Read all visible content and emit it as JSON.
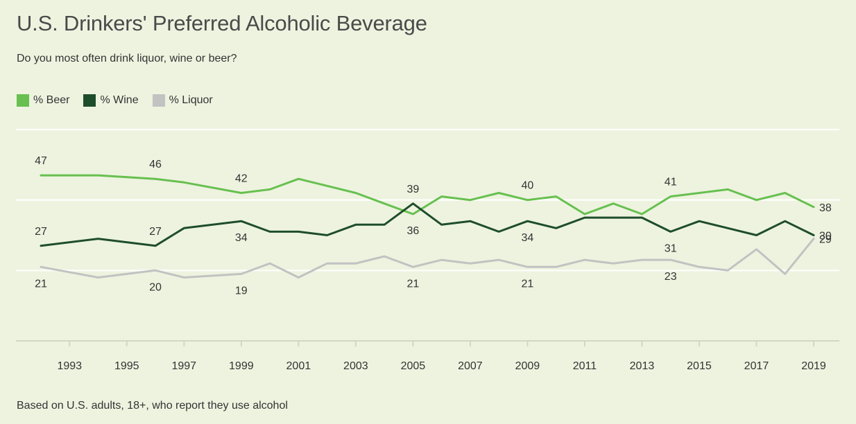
{
  "title": "U.S. Drinkers' Preferred Alcoholic Beverage",
  "subtitle": "Do you most often drink liquor, wine or beer?",
  "footnote": "Based on U.S. adults, 18+, who report they use alcohol",
  "colors": {
    "background": "#edf3df",
    "beer": "#67c04f",
    "wine": "#1e4d2b",
    "liquor": "#c2c2c2",
    "grid": "#ffffff"
  },
  "chart_data": {
    "type": "line",
    "title": "U.S. Drinkers' Preferred Alcoholic Beverage",
    "subtitle": "Do you most often drink liquor, wine or beer?",
    "xlabel": "",
    "ylabel": "",
    "xlim": [
      1992,
      2019
    ],
    "ylim": [
      0,
      60
    ],
    "grid": true,
    "legend_position": "top-left",
    "x_ticks": [
      1993,
      1995,
      1997,
      1999,
      2001,
      2003,
      2005,
      2007,
      2009,
      2011,
      2013,
      2015,
      2017,
      2019
    ],
    "x": [
      1992,
      1994,
      1996,
      1997,
      1999,
      2000,
      2001,
      2002,
      2003,
      2004,
      2005,
      2006,
      2007,
      2008,
      2009,
      2010,
      2011,
      2012,
      2013,
      2014,
      2015,
      2016,
      2017,
      2018,
      2019
    ],
    "series": [
      {
        "key": "beer",
        "name": "% Beer",
        "values": [
          47,
          47,
          46,
          45,
          42,
          43,
          46,
          44,
          42,
          39,
          36,
          41,
          40,
          42,
          40,
          41,
          36,
          39,
          36,
          41,
          42,
          43,
          40,
          42,
          38
        ]
      },
      {
        "key": "wine",
        "name": "% Wine",
        "values": [
          27,
          29,
          27,
          32,
          34,
          31,
          31,
          30,
          33,
          33,
          39,
          33,
          34,
          31,
          34,
          32,
          35,
          35,
          35,
          31,
          34,
          32,
          30,
          34,
          30
        ]
      },
      {
        "key": "liquor",
        "name": "% Liquor",
        "values": [
          21,
          18,
          20,
          18,
          19,
          22,
          18,
          22,
          22,
          24,
          21,
          23,
          22,
          23,
          21,
          21,
          23,
          22,
          23,
          23,
          21,
          20,
          26,
          19,
          29
        ]
      }
    ],
    "annotations": [
      {
        "series": "beer",
        "x": 1992,
        "value": 47,
        "text": "47",
        "pos": "above"
      },
      {
        "series": "wine",
        "x": 1992,
        "value": 27,
        "text": "27",
        "pos": "above"
      },
      {
        "series": "liquor",
        "x": 1992,
        "value": 21,
        "text": "21",
        "pos": "below"
      },
      {
        "series": "beer",
        "x": 1996,
        "value": 46,
        "text": "46",
        "pos": "above"
      },
      {
        "series": "wine",
        "x": 1996,
        "value": 27,
        "text": "27",
        "pos": "above"
      },
      {
        "series": "liquor",
        "x": 1996,
        "value": 20,
        "text": "20",
        "pos": "below"
      },
      {
        "series": "beer",
        "x": 1999,
        "value": 42,
        "text": "42",
        "pos": "above"
      },
      {
        "series": "wine",
        "x": 1999,
        "value": 34,
        "text": "34",
        "pos": "below"
      },
      {
        "series": "liquor",
        "x": 1999,
        "value": 19,
        "text": "19",
        "pos": "below"
      },
      {
        "series": "wine",
        "x": 2005,
        "value": 39,
        "text": "39",
        "pos": "above"
      },
      {
        "series": "beer",
        "x": 2005,
        "value": 36,
        "text": "36",
        "pos": "below"
      },
      {
        "series": "liquor",
        "x": 2005,
        "value": 21,
        "text": "21",
        "pos": "below"
      },
      {
        "series": "beer",
        "x": 2009,
        "value": 40,
        "text": "40",
        "pos": "above"
      },
      {
        "series": "wine",
        "x": 2009,
        "value": 34,
        "text": "34",
        "pos": "below"
      },
      {
        "series": "liquor",
        "x": 2009,
        "value": 21,
        "text": "21",
        "pos": "below"
      },
      {
        "series": "beer",
        "x": 2014,
        "value": 41,
        "text": "41",
        "pos": "above"
      },
      {
        "series": "wine",
        "x": 2014,
        "value": 31,
        "text": "31",
        "pos": "below"
      },
      {
        "series": "liquor",
        "x": 2014,
        "value": 23,
        "text": "23",
        "pos": "below"
      },
      {
        "series": "beer",
        "x": 2019,
        "value": 38,
        "text": "38",
        "pos": "right"
      },
      {
        "series": "wine",
        "x": 2019,
        "value": 30,
        "text": "30",
        "pos": "right"
      },
      {
        "series": "liquor",
        "x": 2019,
        "value": 29,
        "text": "29",
        "pos": "right"
      }
    ]
  }
}
